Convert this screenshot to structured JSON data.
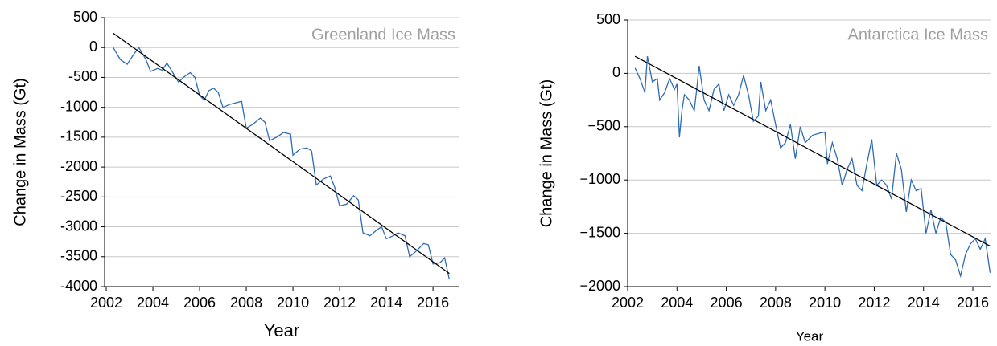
{
  "chart_data": [
    {
      "type": "line",
      "title": "Greenland Ice Mass",
      "xlabel": "Year",
      "ylabel": "Change in Mass (Gt)",
      "x": [
        2002.3,
        2002.6,
        2002.9,
        2003.2,
        2003.4,
        2003.7,
        2003.9,
        2004.2,
        2004.4,
        2004.6,
        2004.9,
        2005.1,
        2005.3,
        2005.6,
        2005.8,
        2006.0,
        2006.2,
        2006.4,
        2006.6,
        2006.8,
        2007.0,
        2007.3,
        2007.6,
        2007.8,
        2008.0,
        2008.3,
        2008.6,
        2008.8,
        2009.0,
        2009.3,
        2009.6,
        2009.9,
        2010.0,
        2010.3,
        2010.6,
        2010.8,
        2011.0,
        2011.3,
        2011.6,
        2011.8,
        2012.0,
        2012.3,
        2012.6,
        2012.8,
        2013.0,
        2013.3,
        2013.6,
        2013.8,
        2014.0,
        2014.3,
        2014.5,
        2014.8,
        2015.0,
        2015.3,
        2015.6,
        2015.8,
        2016.0,
        2016.3,
        2016.5,
        2016.7
      ],
      "values": [
        0,
        -200,
        -280,
        -100,
        0,
        -200,
        -400,
        -350,
        -380,
        -260,
        -450,
        -580,
        -500,
        -420,
        -500,
        -800,
        -880,
        -720,
        -680,
        -750,
        -1000,
        -950,
        -920,
        -900,
        -1350,
        -1280,
        -1180,
        -1250,
        -1560,
        -1500,
        -1420,
        -1450,
        -1800,
        -1700,
        -1680,
        -1730,
        -2300,
        -2200,
        -2150,
        -2350,
        -2650,
        -2620,
        -2480,
        -2550,
        -3100,
        -3150,
        -3050,
        -3000,
        -3200,
        -3150,
        -3100,
        -3150,
        -3500,
        -3400,
        -3280,
        -3300,
        -3620,
        -3600,
        -3520,
        -3880
      ],
      "color": "#2e6bb5",
      "trend_line": {
        "x": [
          2002.3,
          2016.7
        ],
        "values": [
          240,
          -3780
        ],
        "color": "#000000"
      },
      "xlim": [
        2001.93,
        2017.1
      ],
      "xticks": [
        2002,
        2004,
        2006,
        2008,
        2010,
        2012,
        2014,
        2016
      ],
      "ylim": [
        -4000,
        500
      ],
      "yticks": [
        500,
        0,
        -500,
        -1000,
        -1500,
        -2000,
        -2500,
        -3000,
        -3500,
        -4000
      ],
      "grid": true
    },
    {
      "type": "line",
      "title": "Antarctica Ice Mass",
      "xlabel": "Year",
      "ylabel": "Change in Mass (Gt)",
      "x": [
        2002.3,
        2002.5,
        2002.7,
        2002.8,
        2003.0,
        2003.2,
        2003.3,
        2003.5,
        2003.7,
        2003.9,
        2004.0,
        2004.1,
        2004.2,
        2004.3,
        2004.5,
        2004.7,
        2004.8,
        2004.9,
        2005.1,
        2005.3,
        2005.5,
        2005.7,
        2005.9,
        2006.1,
        2006.3,
        2006.5,
        2006.7,
        2006.9,
        2007.1,
        2007.3,
        2007.4,
        2007.6,
        2007.8,
        2008.0,
        2008.2,
        2008.4,
        2008.6,
        2008.8,
        2009.0,
        2009.2,
        2009.5,
        2009.8,
        2010.0,
        2010.1,
        2010.3,
        2010.5,
        2010.7,
        2010.9,
        2011.1,
        2011.3,
        2011.5,
        2011.7,
        2011.9,
        2012.1,
        2012.3,
        2012.5,
        2012.7,
        2012.9,
        2013.1,
        2013.3,
        2013.5,
        2013.7,
        2013.9,
        2014.1,
        2014.3,
        2014.5,
        2014.7,
        2014.9,
        2015.1,
        2015.3,
        2015.5,
        2015.7,
        2015.9,
        2016.1,
        2016.3,
        2016.5,
        2016.7
      ],
      "values": [
        50,
        -50,
        -180,
        160,
        -80,
        -50,
        -250,
        -180,
        -50,
        -150,
        -100,
        -600,
        -350,
        -200,
        -250,
        -350,
        -150,
        70,
        -250,
        -350,
        -150,
        -100,
        -350,
        -200,
        -300,
        -200,
        -20,
        -200,
        -450,
        -400,
        -80,
        -350,
        -250,
        -480,
        -700,
        -650,
        -480,
        -800,
        -500,
        -650,
        -580,
        -560,
        -550,
        -850,
        -650,
        -800,
        -1050,
        -900,
        -800,
        -1050,
        -1100,
        -850,
        -620,
        -1050,
        -1000,
        -1050,
        -1180,
        -750,
        -900,
        -1300,
        -1000,
        -1100,
        -1080,
        -1500,
        -1280,
        -1500,
        -1350,
        -1400,
        -1700,
        -1750,
        -1900,
        -1700,
        -1600,
        -1550,
        -1650,
        -1550,
        -1870
      ],
      "color": "#2e6bb5",
      "trend_line": {
        "x": [
          2002.3,
          2016.7
        ],
        "values": [
          160,
          -1620
        ],
        "color": "#000000"
      },
      "xlim": [
        2002,
        2016.75
      ],
      "xticks": [
        2002,
        2004,
        2006,
        2008,
        2010,
        2012,
        2014,
        2016
      ],
      "ylim": [
        -2000,
        500
      ],
      "yticks": [
        500,
        0,
        {
          "value": -500,
          "label": "−500"
        },
        {
          "value": -1000,
          "label": "−1000"
        },
        {
          "value": -1500,
          "label": "−1500"
        },
        {
          "value": -2000,
          "label": "−2000"
        }
      ],
      "grid": true
    }
  ]
}
